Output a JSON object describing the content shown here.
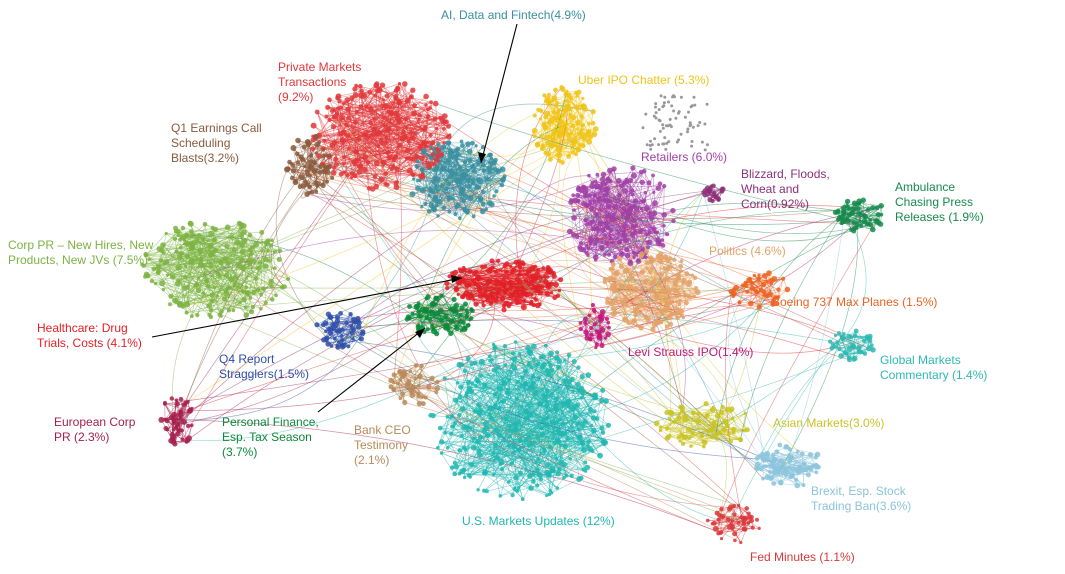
{
  "clusters": [
    {
      "id": "ai",
      "label": "AI, Data and Fintech(4.9%)",
      "color": "#3a8fa0"
    },
    {
      "id": "private",
      "label": "Private Markets\nTransactions\n(9.2%)",
      "color": "#e0383b"
    },
    {
      "id": "uber",
      "label": "Uber IPO Chatter (5.3%)",
      "color": "#f0c418"
    },
    {
      "id": "q1",
      "label": "Q1 Earnings Call\nScheduling\nBlasts(3.2%)",
      "color": "#8a5a3c"
    },
    {
      "id": "retailers",
      "label": "Retailers (6.0%)",
      "color": "#a03fa6"
    },
    {
      "id": "blizzard",
      "label": "Blizzard, Floods,\nWheat and\nCorn(0.92%)",
      "color": "#8d2f7a"
    },
    {
      "id": "ambulance",
      "label": "Ambulance\nChasing Press\nReleases (1.9%)",
      "color": "#168a4c"
    },
    {
      "id": "corppr",
      "label": "Corp PR – New Hires, New\nProducts, New JVs (7.5%)",
      "color": "#7cb342"
    },
    {
      "id": "politics",
      "label": "Politics (4.6%)",
      "color": "#e3a267"
    },
    {
      "id": "boeing",
      "label": "Boeing 737 Max Planes (1.5%)",
      "color": "#ef6220"
    },
    {
      "id": "healthcare",
      "label": "Healthcare: Drug\nTrials, Costs (4.1%)",
      "color": "#e21f26"
    },
    {
      "id": "q4",
      "label": "Q4 Report\nStragglers(1.5%)",
      "color": "#2f4fa8"
    },
    {
      "id": "levi",
      "label": "Levi Strauss IPO(1.4%)",
      "color": "#c2187a"
    },
    {
      "id": "global",
      "label": "Global Markets\nCommentary  (1.4%)",
      "color": "#2fb9b3"
    },
    {
      "id": "european",
      "label": "European Corp\nPR (2.3%)",
      "color": "#a6204e"
    },
    {
      "id": "personal",
      "label": "Personal Finance,\nEsp. Tax Season\n(3.7%)",
      "color": "#0b8a3a"
    },
    {
      "id": "bankceo",
      "label": "Bank CEO\nTestimony\n(2.1%)",
      "color": "#b88a5a"
    },
    {
      "id": "asian",
      "label": "Asian Markets(3.0%)",
      "color": "#c9c325"
    },
    {
      "id": "brexit",
      "label": "Brexit, Esp. Stock\nTrading Ban(3.6%)",
      "color": "#8cc4dc"
    },
    {
      "id": "usmarkets",
      "label": "U.S. Markets Updates (12%)",
      "color": "#20b7b0"
    },
    {
      "id": "fed",
      "label": "Fed Minutes (1.1%)",
      "color": "#d9383a"
    }
  ]
}
